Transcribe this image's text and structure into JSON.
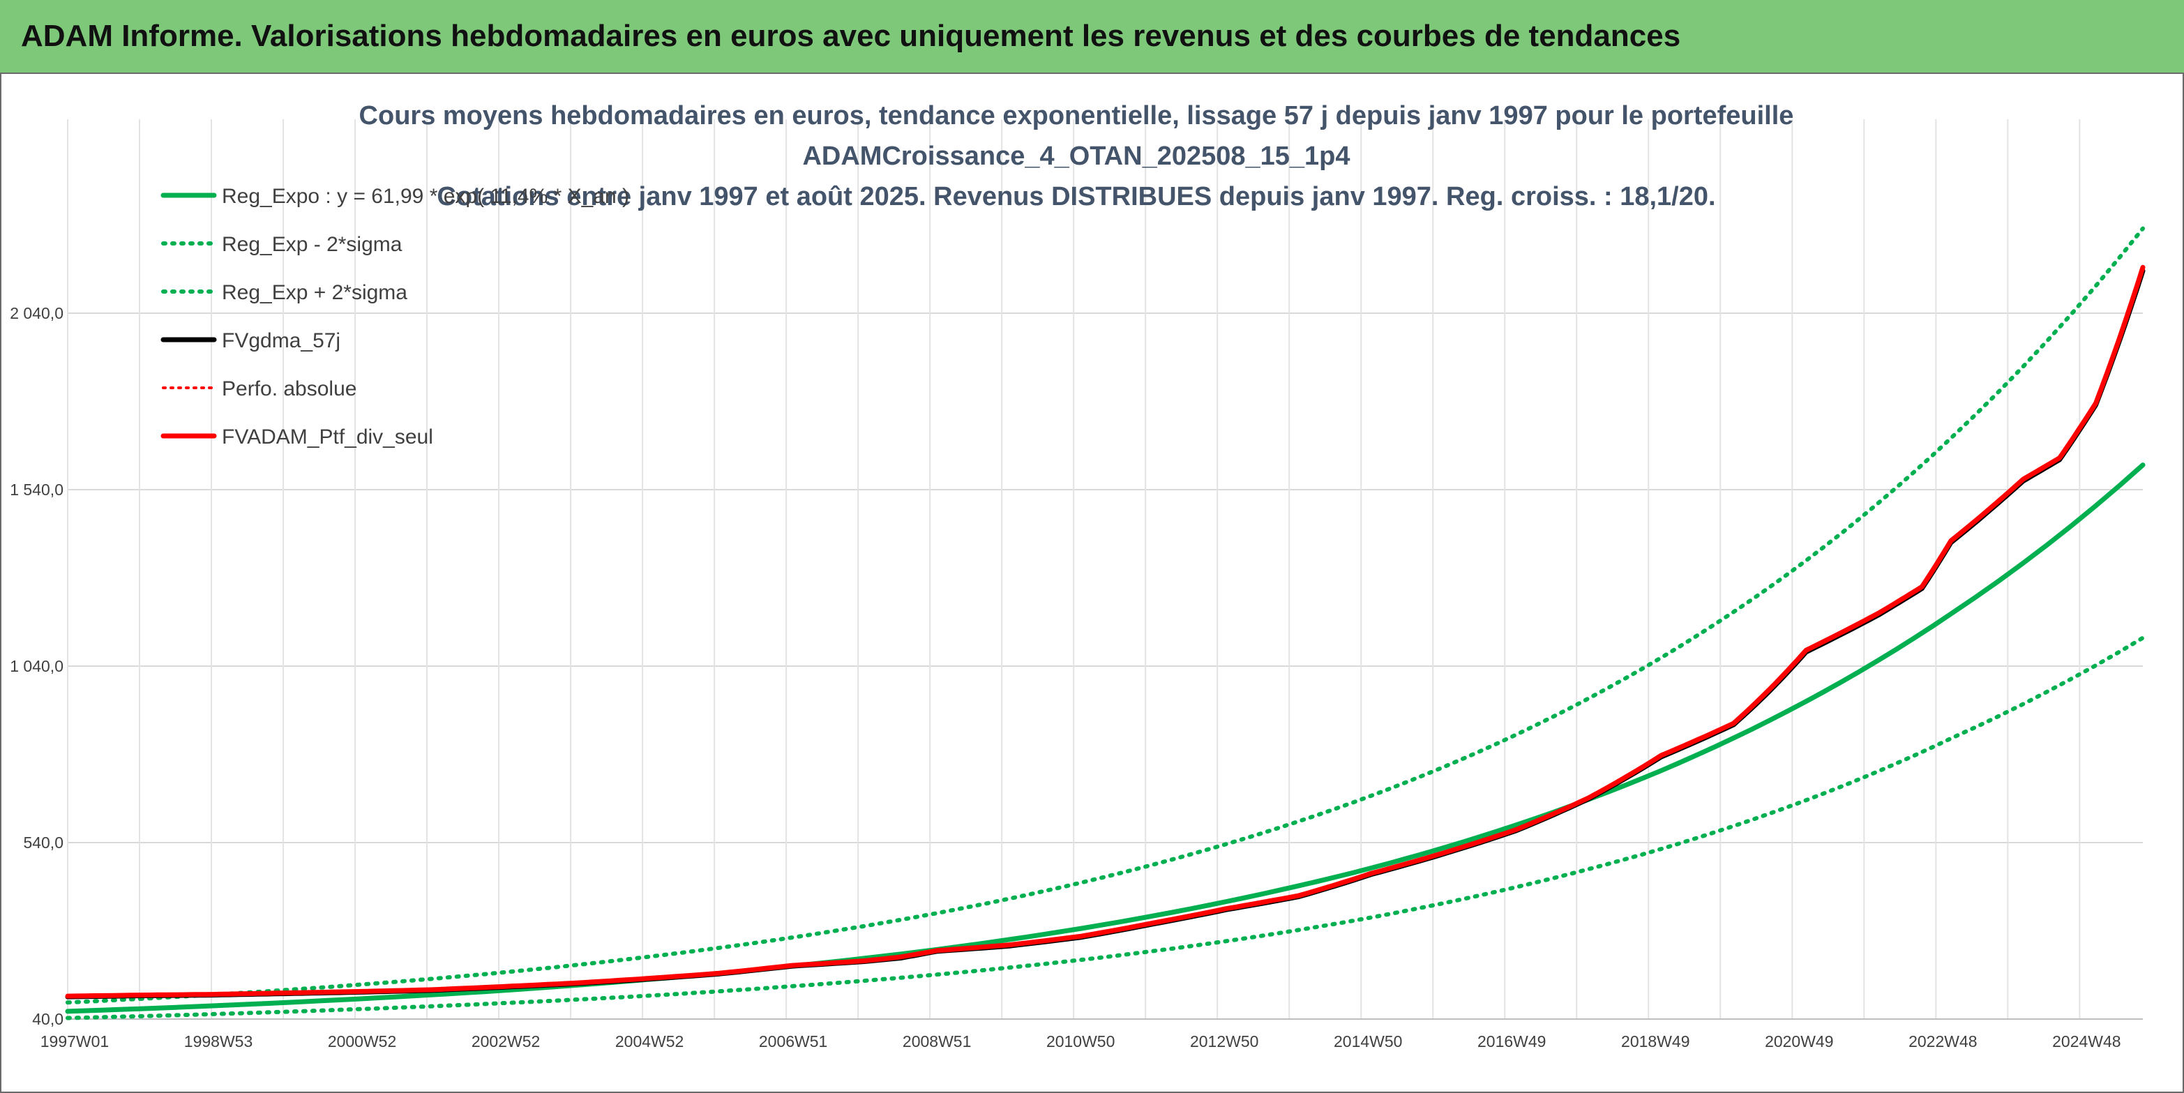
{
  "header": {
    "title": "ADAM Informe. Valorisations hebdomadaires en euros avec uniquement les revenus et des courbes de tendances"
  },
  "colors": {
    "header_bg": "#7ec87a",
    "accent": "#f2c12e",
    "green": "#00b050",
    "red": "#ff0000",
    "black": "#000000",
    "title_text": "#44546a"
  },
  "chart_data": {
    "type": "line",
    "title": [
      "Cours moyens hebdomadaires en euros, tendance exponentielle, lissage 57 j depuis janv 1997 pour le portefeuille",
      "ADAMCroissance_4_OTAN_202508_15_1p4",
      "Cotations entre janv 1997 et août 2025. Revenus DISTRIBUES depuis janv 1997. Reg. croiss. : 18,1/20."
    ],
    "xlabel": "",
    "ylabel": "",
    "x_tick_labels": [
      "1997W01",
      "1998W53",
      "2000W52",
      "2002W52",
      "2004W52",
      "2006W51",
      "2008W51",
      "2010W50",
      "2012W50",
      "2014W50",
      "2016W49",
      "2018W49",
      "2020W49",
      "2022W48",
      "2024W48"
    ],
    "x_range": [
      1997.0,
      2025.65
    ],
    "ylim": [
      40,
      2550
    ],
    "y_ticks": [
      40,
      540,
      1040,
      1540,
      2040
    ],
    "y_tick_labels": [
      "40,0",
      "540,0",
      "1 040,0",
      "1 540,0",
      "2 040,0"
    ],
    "grid": "vertical and horizontal",
    "legend_position": "top-left",
    "series": [
      {
        "name": "Reg_Expo : y = 61,99 * exp( 11,4% *  X_an )",
        "style": "solid",
        "color": "#00b050",
        "x": [
          1997,
          1999,
          2001,
          2003,
          2005,
          2007,
          2009,
          2011,
          2013,
          2015,
          2017,
          2019,
          2021,
          2023,
          2025.65
        ],
        "values": [
          62,
          77.5,
          97,
          121,
          152,
          190,
          237,
          297,
          373,
          468,
          590,
          744,
          940,
          1188,
          1610
        ]
      },
      {
        "name": "Reg_Exp - 2*sigma",
        "style": "dotted",
        "color": "#00b050",
        "x": [
          1997,
          1999,
          2001,
          2003,
          2005,
          2007,
          2009,
          2011,
          2013,
          2015,
          2017,
          2019,
          2021,
          2023,
          2025.65
        ],
        "values": [
          43,
          54,
          68,
          85,
          106,
          133,
          166,
          208,
          261,
          328,
          414,
          522,
          660,
          835,
          1120
        ]
      },
      {
        "name": "Reg_Exp + 2*sigma",
        "style": "dotted",
        "color": "#00b050",
        "x": [
          1997,
          1999,
          2001,
          2003,
          2005,
          2007,
          2009,
          2011,
          2013,
          2015,
          2017,
          2019,
          2021,
          2023,
          2025.65
        ],
        "values": [
          87,
          109,
          137,
          172,
          216,
          271,
          340,
          427,
          536,
          673,
          846,
          1064,
          1339,
          1686,
          2280
        ]
      },
      {
        "name": "FVgdma_57j",
        "style": "solid",
        "color": "#000000",
        "x": [
          1997,
          1998,
          1999,
          2000,
          2001,
          2002,
          2003,
          2004,
          2005,
          2006,
          2007,
          2008,
          2008.5,
          2009,
          2010,
          2011,
          2012,
          2013,
          2014,
          2015,
          2016,
          2017,
          2018,
          2019,
          2020,
          2020.5,
          2021,
          2022,
          2022.6,
          2023,
          2024,
          2024.5,
          2025,
          2025.65
        ],
        "values": [
          103,
          106,
          108,
          112,
          116,
          121,
          130,
          140,
          153,
          168,
          190,
          203,
          213,
          232,
          247,
          272,
          310,
          350,
          387,
          450,
          508,
          574,
          664,
          783,
          874,
          970,
          1080,
          1185,
          1260,
          1390,
          1565,
          1625,
          1780,
          2160
        ]
      },
      {
        "name": "Perfo. absolue",
        "style": "dotted",
        "color": "#ff0000",
        "x": [
          1997,
          1998,
          1999,
          2000,
          2001,
          2002,
          2003,
          2004,
          2005,
          2006,
          2007,
          2008,
          2008.5,
          2009,
          2010,
          2011,
          2012,
          2013,
          2014,
          2015,
          2016,
          2017,
          2018,
          2019,
          2020,
          2020.5,
          2021,
          2022,
          2022.6,
          2023,
          2024,
          2024.5,
          2025,
          2025.65
        ],
        "values": [
          105,
          108,
          110,
          114,
          118,
          123,
          132,
          142,
          155,
          170,
          192,
          205,
          216,
          234,
          250,
          275,
          313,
          353,
          390,
          453,
          511,
          577,
          667,
          787,
          878,
          975,
          1085,
          1190,
          1265,
          1395,
          1570,
          1630,
          1785,
          2170
        ]
      },
      {
        "name": "FVADAM_Ptf_div_seul",
        "style": "solid",
        "color": "#ff0000",
        "x": [
          1997,
          1998,
          1999,
          2000,
          2001,
          2002,
          2003,
          2004,
          2005,
          2006,
          2007,
          2008,
          2008.5,
          2009,
          2010,
          2011,
          2012,
          2013,
          2014,
          2015,
          2016,
          2017,
          2018,
          2019,
          2020,
          2020.5,
          2021,
          2022,
          2022.6,
          2023,
          2024,
          2024.5,
          2025,
          2025.65
        ],
        "values": [
          105,
          108,
          110,
          114,
          118,
          123,
          132,
          142,
          155,
          170,
          192,
          205,
          216,
          234,
          250,
          275,
          313,
          353,
          390,
          453,
          511,
          577,
          667,
          787,
          878,
          975,
          1085,
          1190,
          1265,
          1395,
          1570,
          1630,
          1785,
          2170
        ]
      }
    ]
  }
}
